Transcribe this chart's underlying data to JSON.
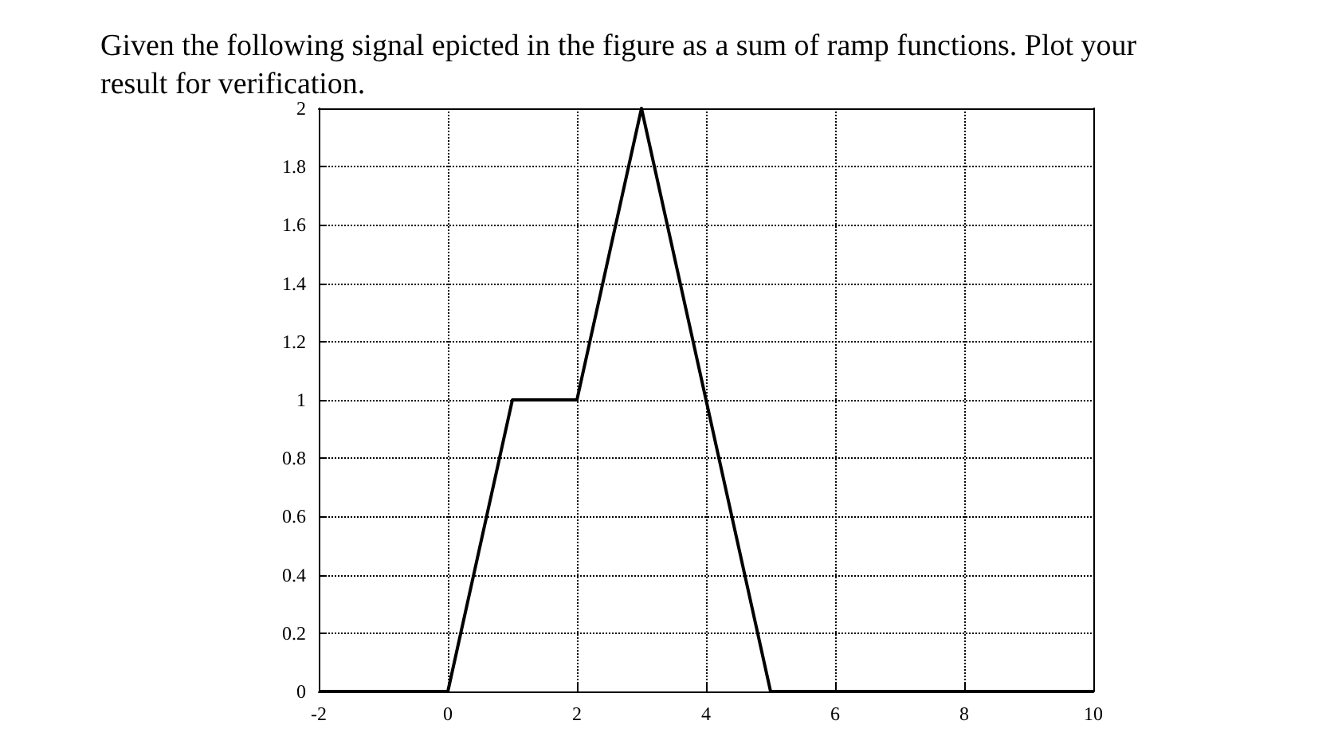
{
  "chart_data": {
    "type": "line",
    "title": "Given the following signal epicted in the figure as a sum of ramp functions. Plot your result for verification.",
    "x": [
      -2,
      0,
      1,
      2,
      3,
      5,
      10
    ],
    "series": [
      {
        "color": "#000000",
        "values": [
          0,
          0,
          1,
          1,
          2,
          0,
          0
        ]
      }
    ],
    "xlim": [
      -2,
      10
    ],
    "xticks": [
      -2,
      0,
      2,
      4,
      6,
      8,
      10
    ],
    "ylim": [
      0,
      2
    ],
    "yticks": [
      0,
      0.2,
      0.4,
      0.6,
      0.8,
      1,
      1.2,
      1.4,
      1.6,
      1.8,
      2
    ],
    "grid": true,
    "marker": "none",
    "line_style": "solid"
  }
}
